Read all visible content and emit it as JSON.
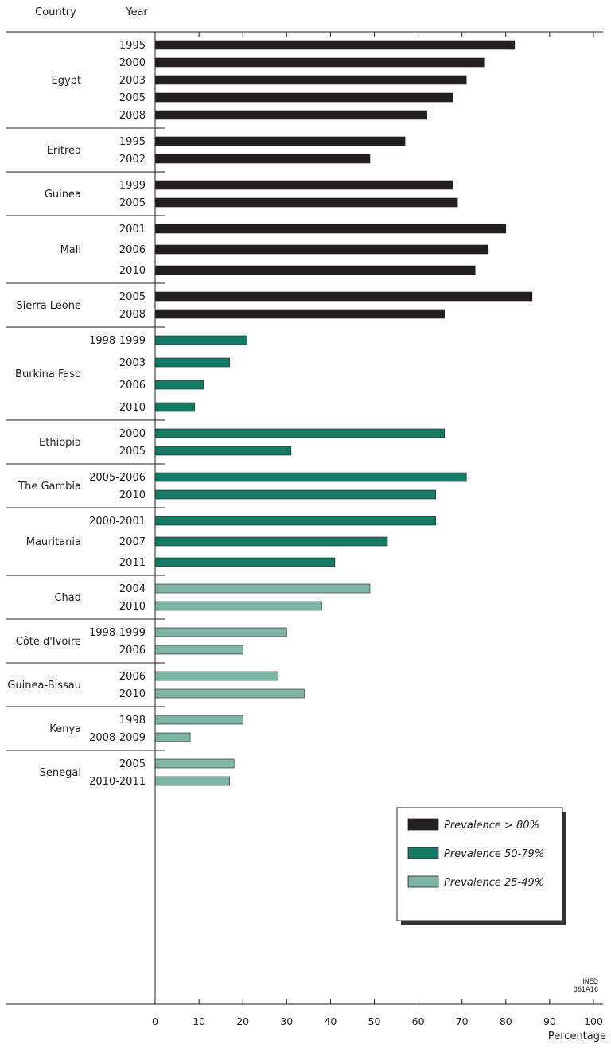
{
  "chart_data": {
    "type": "bar",
    "orientation": "horizontal",
    "column_headers": {
      "country": "Country",
      "year": "Year"
    },
    "xlabel": "Percentage",
    "xlim": [
      0,
      100
    ],
    "x_ticks": [
      "0",
      "10",
      "20",
      "30",
      "40",
      "50",
      "60",
      "70",
      "80",
      "90",
      "100"
    ],
    "grid": false,
    "legend_position": "bottom-right",
    "legend": [
      {
        "label": "Prevalence > 80%",
        "color": "#231f20"
      },
      {
        "label": "Prevalence 50-79%",
        "color": "#167a65"
      },
      {
        "label": "Prevalence 25-49%",
        "color": "#7fb5a5"
      }
    ],
    "credit": [
      "INED",
      "061A16"
    ],
    "groups": [
      {
        "country": "Egypt",
        "category": 0,
        "bars": [
          {
            "year": "1995",
            "value": 82
          },
          {
            "year": "2000",
            "value": 75
          },
          {
            "year": "2003",
            "value": 71
          },
          {
            "year": "2005",
            "value": 68
          },
          {
            "year": "2008",
            "value": 62
          }
        ]
      },
      {
        "country": "Eritrea",
        "category": 0,
        "bars": [
          {
            "year": "1995",
            "value": 57
          },
          {
            "year": "2002",
            "value": 49
          }
        ]
      },
      {
        "country": "Guinea",
        "category": 0,
        "bars": [
          {
            "year": "1999",
            "value": 68
          },
          {
            "year": "2005",
            "value": 69
          }
        ]
      },
      {
        "country": "Mali",
        "category": 0,
        "bars": [
          {
            "year": "2001",
            "value": 80
          },
          {
            "year": "2006",
            "value": 76
          },
          {
            "year": "2010",
            "value": 73
          }
        ]
      },
      {
        "country": "Sierra Leone",
        "category": 0,
        "bars": [
          {
            "year": "2005",
            "value": 86
          },
          {
            "year": "2008",
            "value": 66
          }
        ]
      },
      {
        "country": "Burkina Faso",
        "category": 1,
        "bars": [
          {
            "year": "1998-1999",
            "value": 21
          },
          {
            "year": "2003",
            "value": 17
          },
          {
            "year": "2006",
            "value": 11
          },
          {
            "year": "2010",
            "value": 9
          }
        ]
      },
      {
        "country": "Ethiopia",
        "category": 1,
        "bars": [
          {
            "year": "2000",
            "value": 66
          },
          {
            "year": "2005",
            "value": 31
          }
        ]
      },
      {
        "country": "The Gambia",
        "category": 1,
        "bars": [
          {
            "year": "2005-2006",
            "value": 71
          },
          {
            "year": "2010",
            "value": 64
          }
        ]
      },
      {
        "country": "Mauritania",
        "category": 1,
        "bars": [
          {
            "year": "2000-2001",
            "value": 64
          },
          {
            "year": "2007",
            "value": 53
          },
          {
            "year": "2011",
            "value": 41
          }
        ]
      },
      {
        "country": "Chad",
        "category": 2,
        "bars": [
          {
            "year": "2004",
            "value": 49
          },
          {
            "year": "2010",
            "value": 38
          }
        ]
      },
      {
        "country": "Côte d'Ivoire",
        "category": 2,
        "bars": [
          {
            "year": "1998-1999",
            "value": 30
          },
          {
            "year": "2006",
            "value": 20
          }
        ]
      },
      {
        "country": "Guinea-Bissau",
        "category": 2,
        "bars": [
          {
            "year": "2006",
            "value": 28
          },
          {
            "year": "2010",
            "value": 34
          }
        ]
      },
      {
        "country": "Kenya",
        "category": 2,
        "bars": [
          {
            "year": "1998",
            "value": 20
          },
          {
            "year": "2008-2009",
            "value": 8
          }
        ]
      },
      {
        "country": "Senegal",
        "category": 2,
        "bars": [
          {
            "year": "2005",
            "value": 18
          },
          {
            "year": "2010-2011",
            "value": 17
          }
        ]
      }
    ]
  }
}
